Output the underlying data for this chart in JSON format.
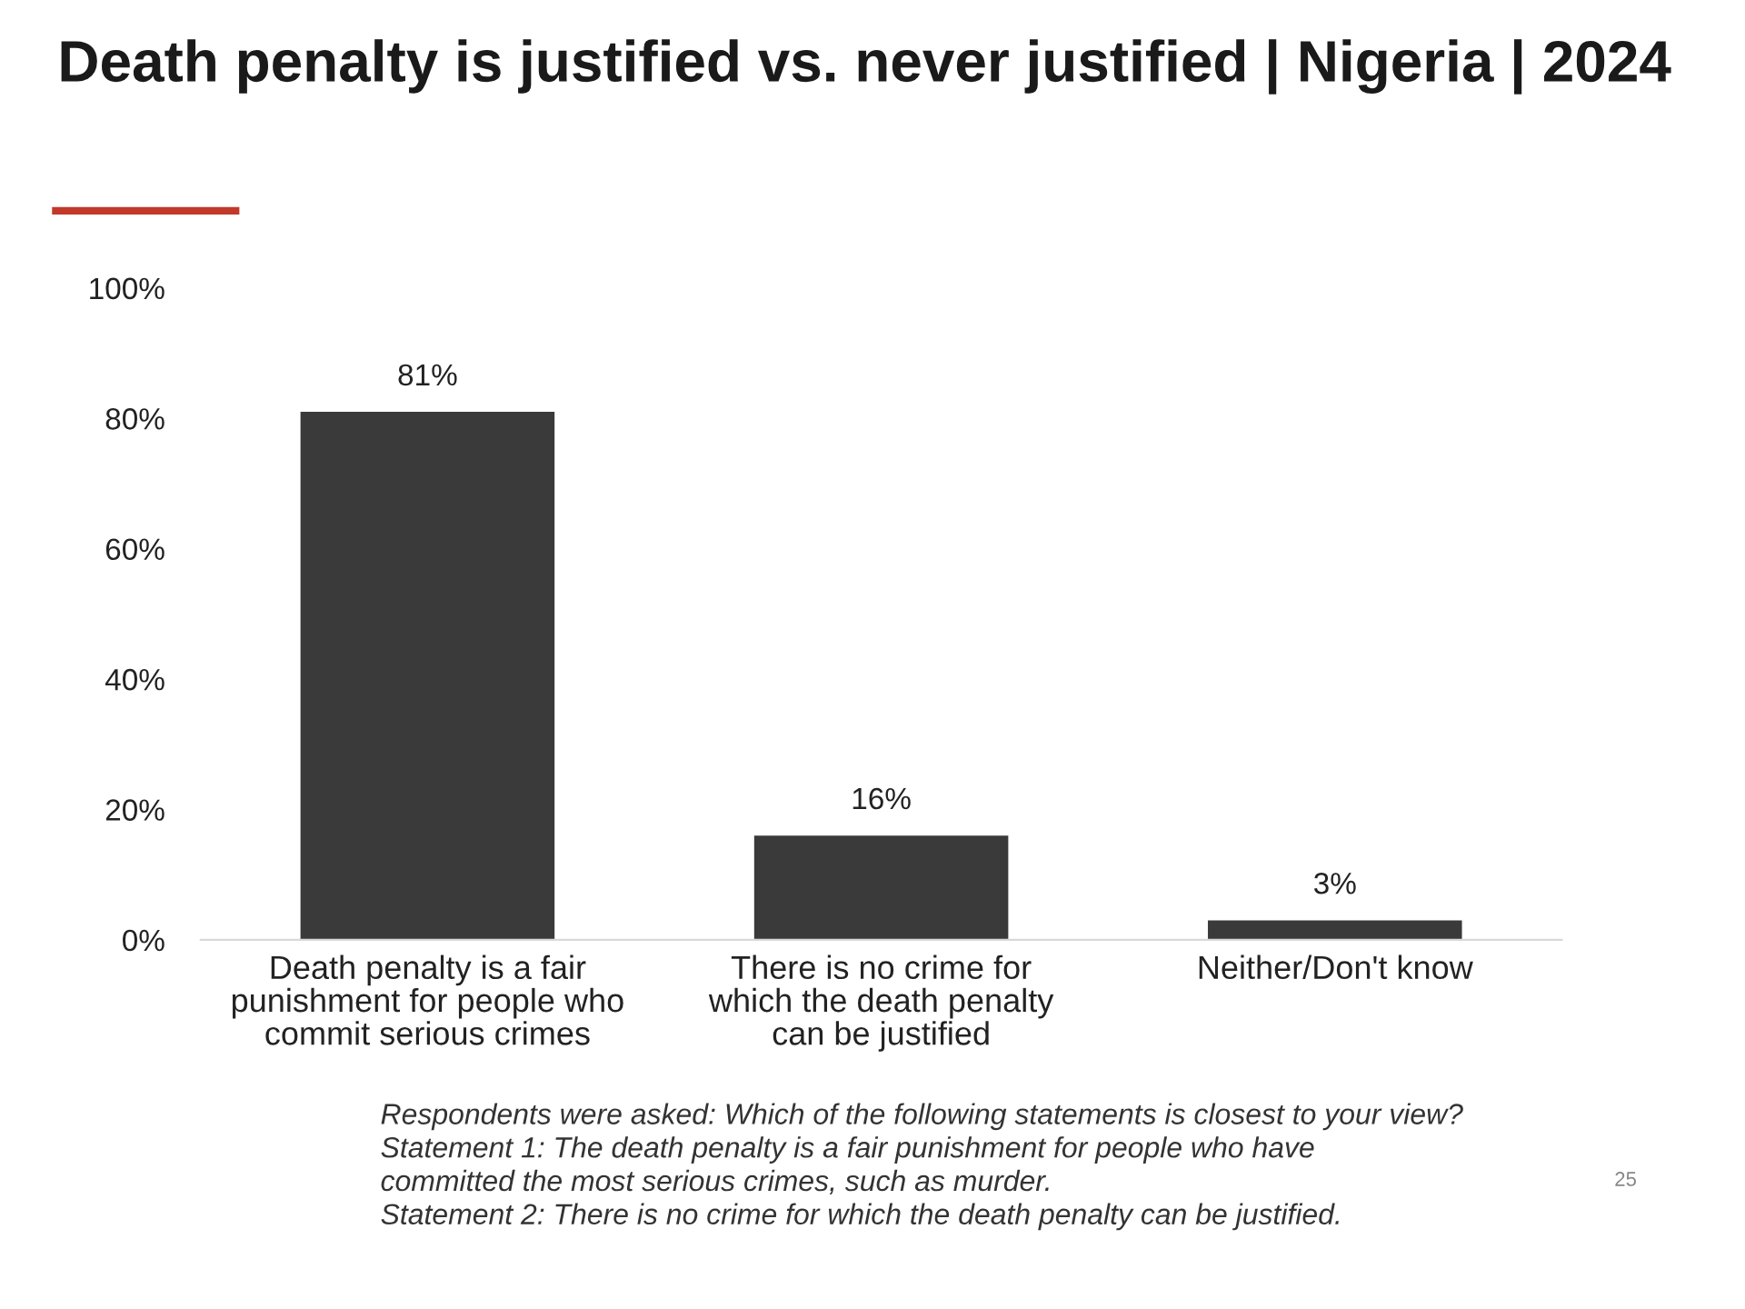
{
  "chart_data": {
    "type": "bar",
    "title": "Death penalty is justified vs. never justified | Nigeria | 2024",
    "categories": [
      "Death penalty is a fair punishment for people who commit serious crimes",
      "There is no crime for which the death penalty can be justified",
      "Neither/Don't know"
    ],
    "values": [
      81,
      16,
      3
    ],
    "color": "#3a3a3a",
    "data_labels": true,
    "value_labels": [
      "81%",
      "16%",
      "3%"
    ],
    "ylim": [
      0,
      100
    ],
    "yticks": [
      {
        "value": 0,
        "label": "0%"
      },
      {
        "value": 20,
        "label": "20%"
      },
      {
        "value": 40,
        "label": "40%"
      },
      {
        "value": 60,
        "label": "60%"
      },
      {
        "value": 80,
        "label": "80%"
      },
      {
        "value": 100,
        "label": "100%"
      }
    ],
    "grid": false,
    "legend": false,
    "annotations": [
      "Respondents were asked: Which of the following statements is closest to your view?",
      "Statement 1: The death penalty is a fair punishment for people who have",
      "committed the most serious crimes, such as murder.",
      "Statement 2: There is no crime for which the death penalty can be justified.",
      "25"
    ]
  }
}
